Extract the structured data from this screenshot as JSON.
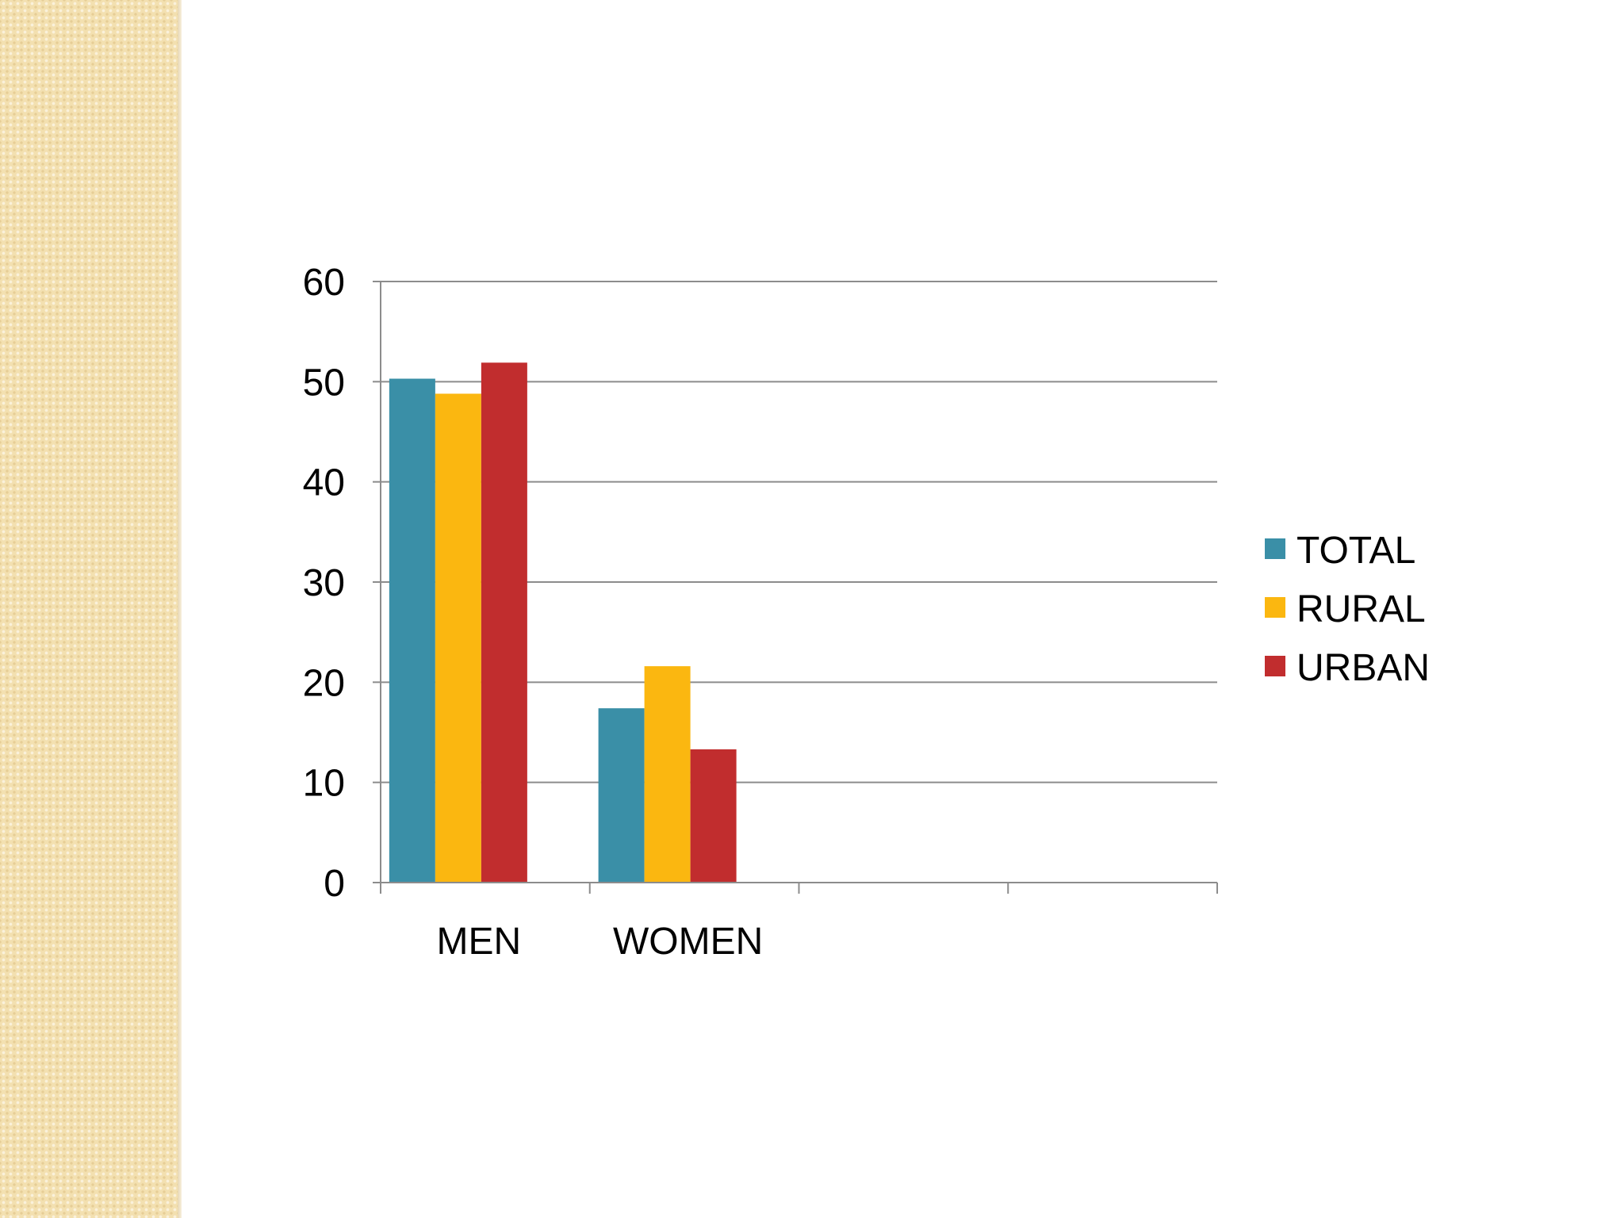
{
  "chart_data": {
    "type": "bar",
    "categories": [
      "MEN",
      "WOMEN",
      "",
      ""
    ],
    "series": [
      {
        "name": "TOTAL",
        "color": "#3a8fa7",
        "values": [
          50.3,
          17.4,
          null,
          null
        ]
      },
      {
        "name": "RURAL",
        "color": "#fbb710",
        "values": [
          48.8,
          21.6,
          null,
          null
        ]
      },
      {
        "name": "URBAN",
        "color": "#c12d2e",
        "values": [
          51.9,
          13.3,
          null,
          null
        ]
      }
    ],
    "ylim": [
      0,
      60
    ],
    "yticks": [
      "0",
      "10",
      "20",
      "30",
      "40",
      "50",
      "60"
    ],
    "grid": true,
    "legend_position": "right",
    "title": "",
    "xlabel": "",
    "ylabel": ""
  }
}
